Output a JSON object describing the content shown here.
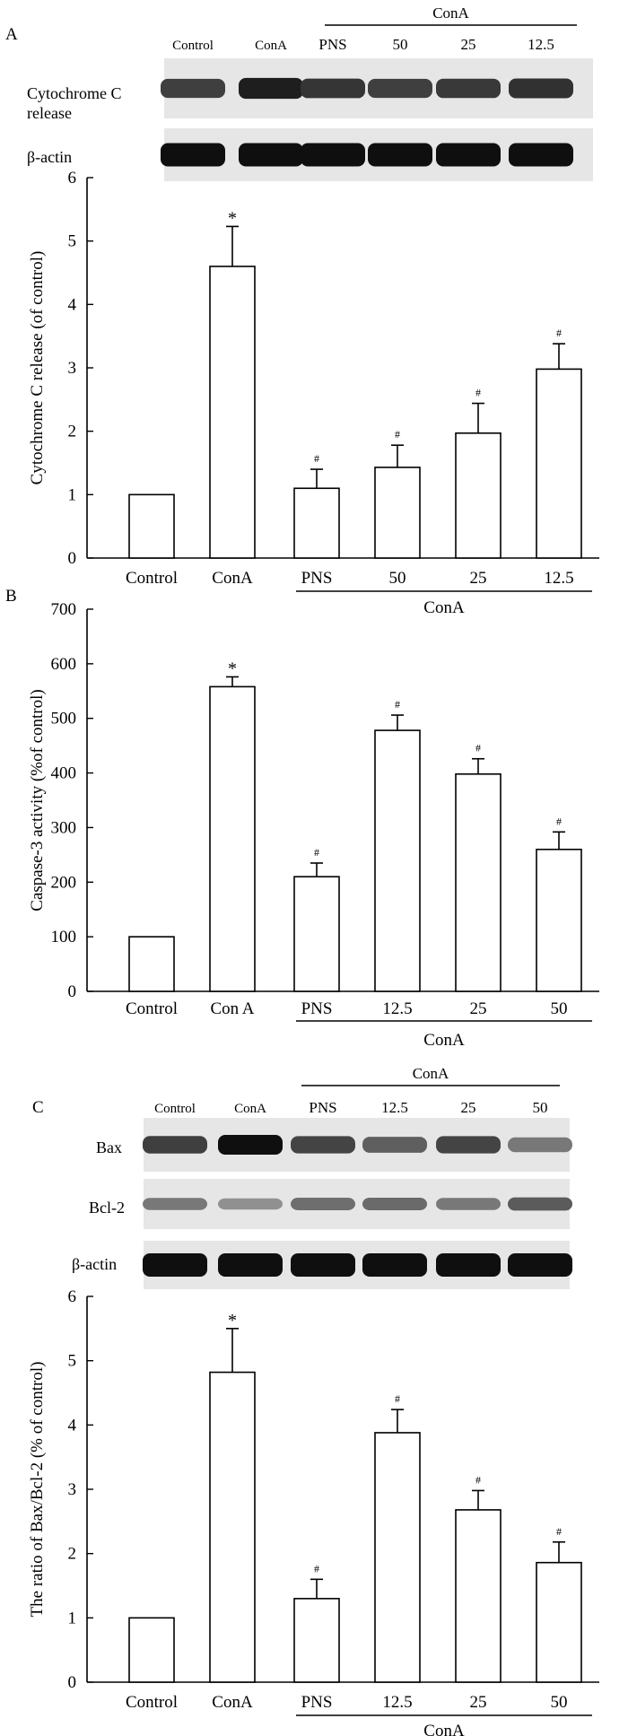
{
  "panels": [
    {
      "letter": "A",
      "blot": {
        "group_label": "ConA",
        "lane_labels": [
          "Control",
          "ConA",
          "PNS",
          "50",
          "25",
          "12.5"
        ],
        "rows": [
          {
            "label": "Cytochrome C release",
            "intensity": [
              0.75,
              0.92,
              0.8,
              0.75,
              0.78,
              0.82
            ]
          },
          {
            "label": "β-actin",
            "intensity": [
              1,
              1,
              1,
              1,
              1,
              1
            ]
          }
        ]
      }
    },
    {
      "letter": "B"
    },
    {
      "letter": "C",
      "blot": {
        "group_label": "ConA",
        "lane_labels": [
          "Control",
          "ConA",
          "PNS",
          "12.5",
          "25",
          "50"
        ],
        "rows": [
          {
            "label": "Bax",
            "intensity": [
              0.75,
              1.0,
              0.72,
              0.58,
              0.72,
              0.45
            ]
          },
          {
            "label": "Bcl-2",
            "intensity": [
              0.45,
              0.32,
              0.5,
              0.52,
              0.45,
              0.6
            ]
          },
          {
            "label": "β-actin",
            "intensity": [
              1,
              1,
              1,
              1,
              1,
              1
            ]
          }
        ]
      }
    }
  ],
  "chart_data": [
    {
      "type": "bar",
      "title": "",
      "xlabel": "",
      "ylabel": "Cytochrome C release (of control)",
      "ylim": [
        0,
        6
      ],
      "yticks": [
        0,
        1,
        2,
        3,
        4,
        5,
        6
      ],
      "categories": [
        "Control",
        "ConA",
        "PNS",
        "50",
        "25",
        "12.5"
      ],
      "values": [
        1.0,
        4.6,
        1.1,
        1.43,
        1.97,
        2.98
      ],
      "errors": [
        0,
        0.63,
        0.3,
        0.35,
        0.47,
        0.4
      ],
      "marks": [
        "",
        "*",
        "#",
        "#",
        "#",
        "#"
      ],
      "group_label": "ConA",
      "grid": false
    },
    {
      "type": "bar",
      "title": "",
      "xlabel": "",
      "ylabel": "Caspase-3 activity (%of control)",
      "ylim": [
        0,
        700
      ],
      "yticks": [
        0,
        100,
        200,
        300,
        400,
        500,
        600,
        700
      ],
      "categories": [
        "Control",
        "Con A",
        "PNS",
        "12.5",
        "25",
        "50"
      ],
      "values": [
        100,
        558,
        210,
        478,
        398,
        260
      ],
      "errors": [
        0,
        18,
        25,
        28,
        28,
        32
      ],
      "marks": [
        "",
        "*",
        "#",
        "#",
        "#",
        "#"
      ],
      "group_label": "ConA",
      "grid": false
    },
    {
      "type": "bar",
      "title": "",
      "xlabel": "",
      "ylabel": "The ratio of Bax/Bcl-2 (% of control)",
      "ylim": [
        0,
        6
      ],
      "yticks": [
        0,
        1,
        2,
        3,
        4,
        5,
        6
      ],
      "categories": [
        "Control",
        "ConA",
        "PNS",
        "12.5",
        "25",
        "50"
      ],
      "values": [
        1.0,
        4.82,
        1.3,
        3.88,
        2.68,
        1.86
      ],
      "errors": [
        0,
        0.68,
        0.3,
        0.36,
        0.3,
        0.32
      ],
      "marks": [
        "",
        "*",
        "#",
        "#",
        "#",
        "#"
      ],
      "group_label": "ConA",
      "grid": false
    }
  ]
}
